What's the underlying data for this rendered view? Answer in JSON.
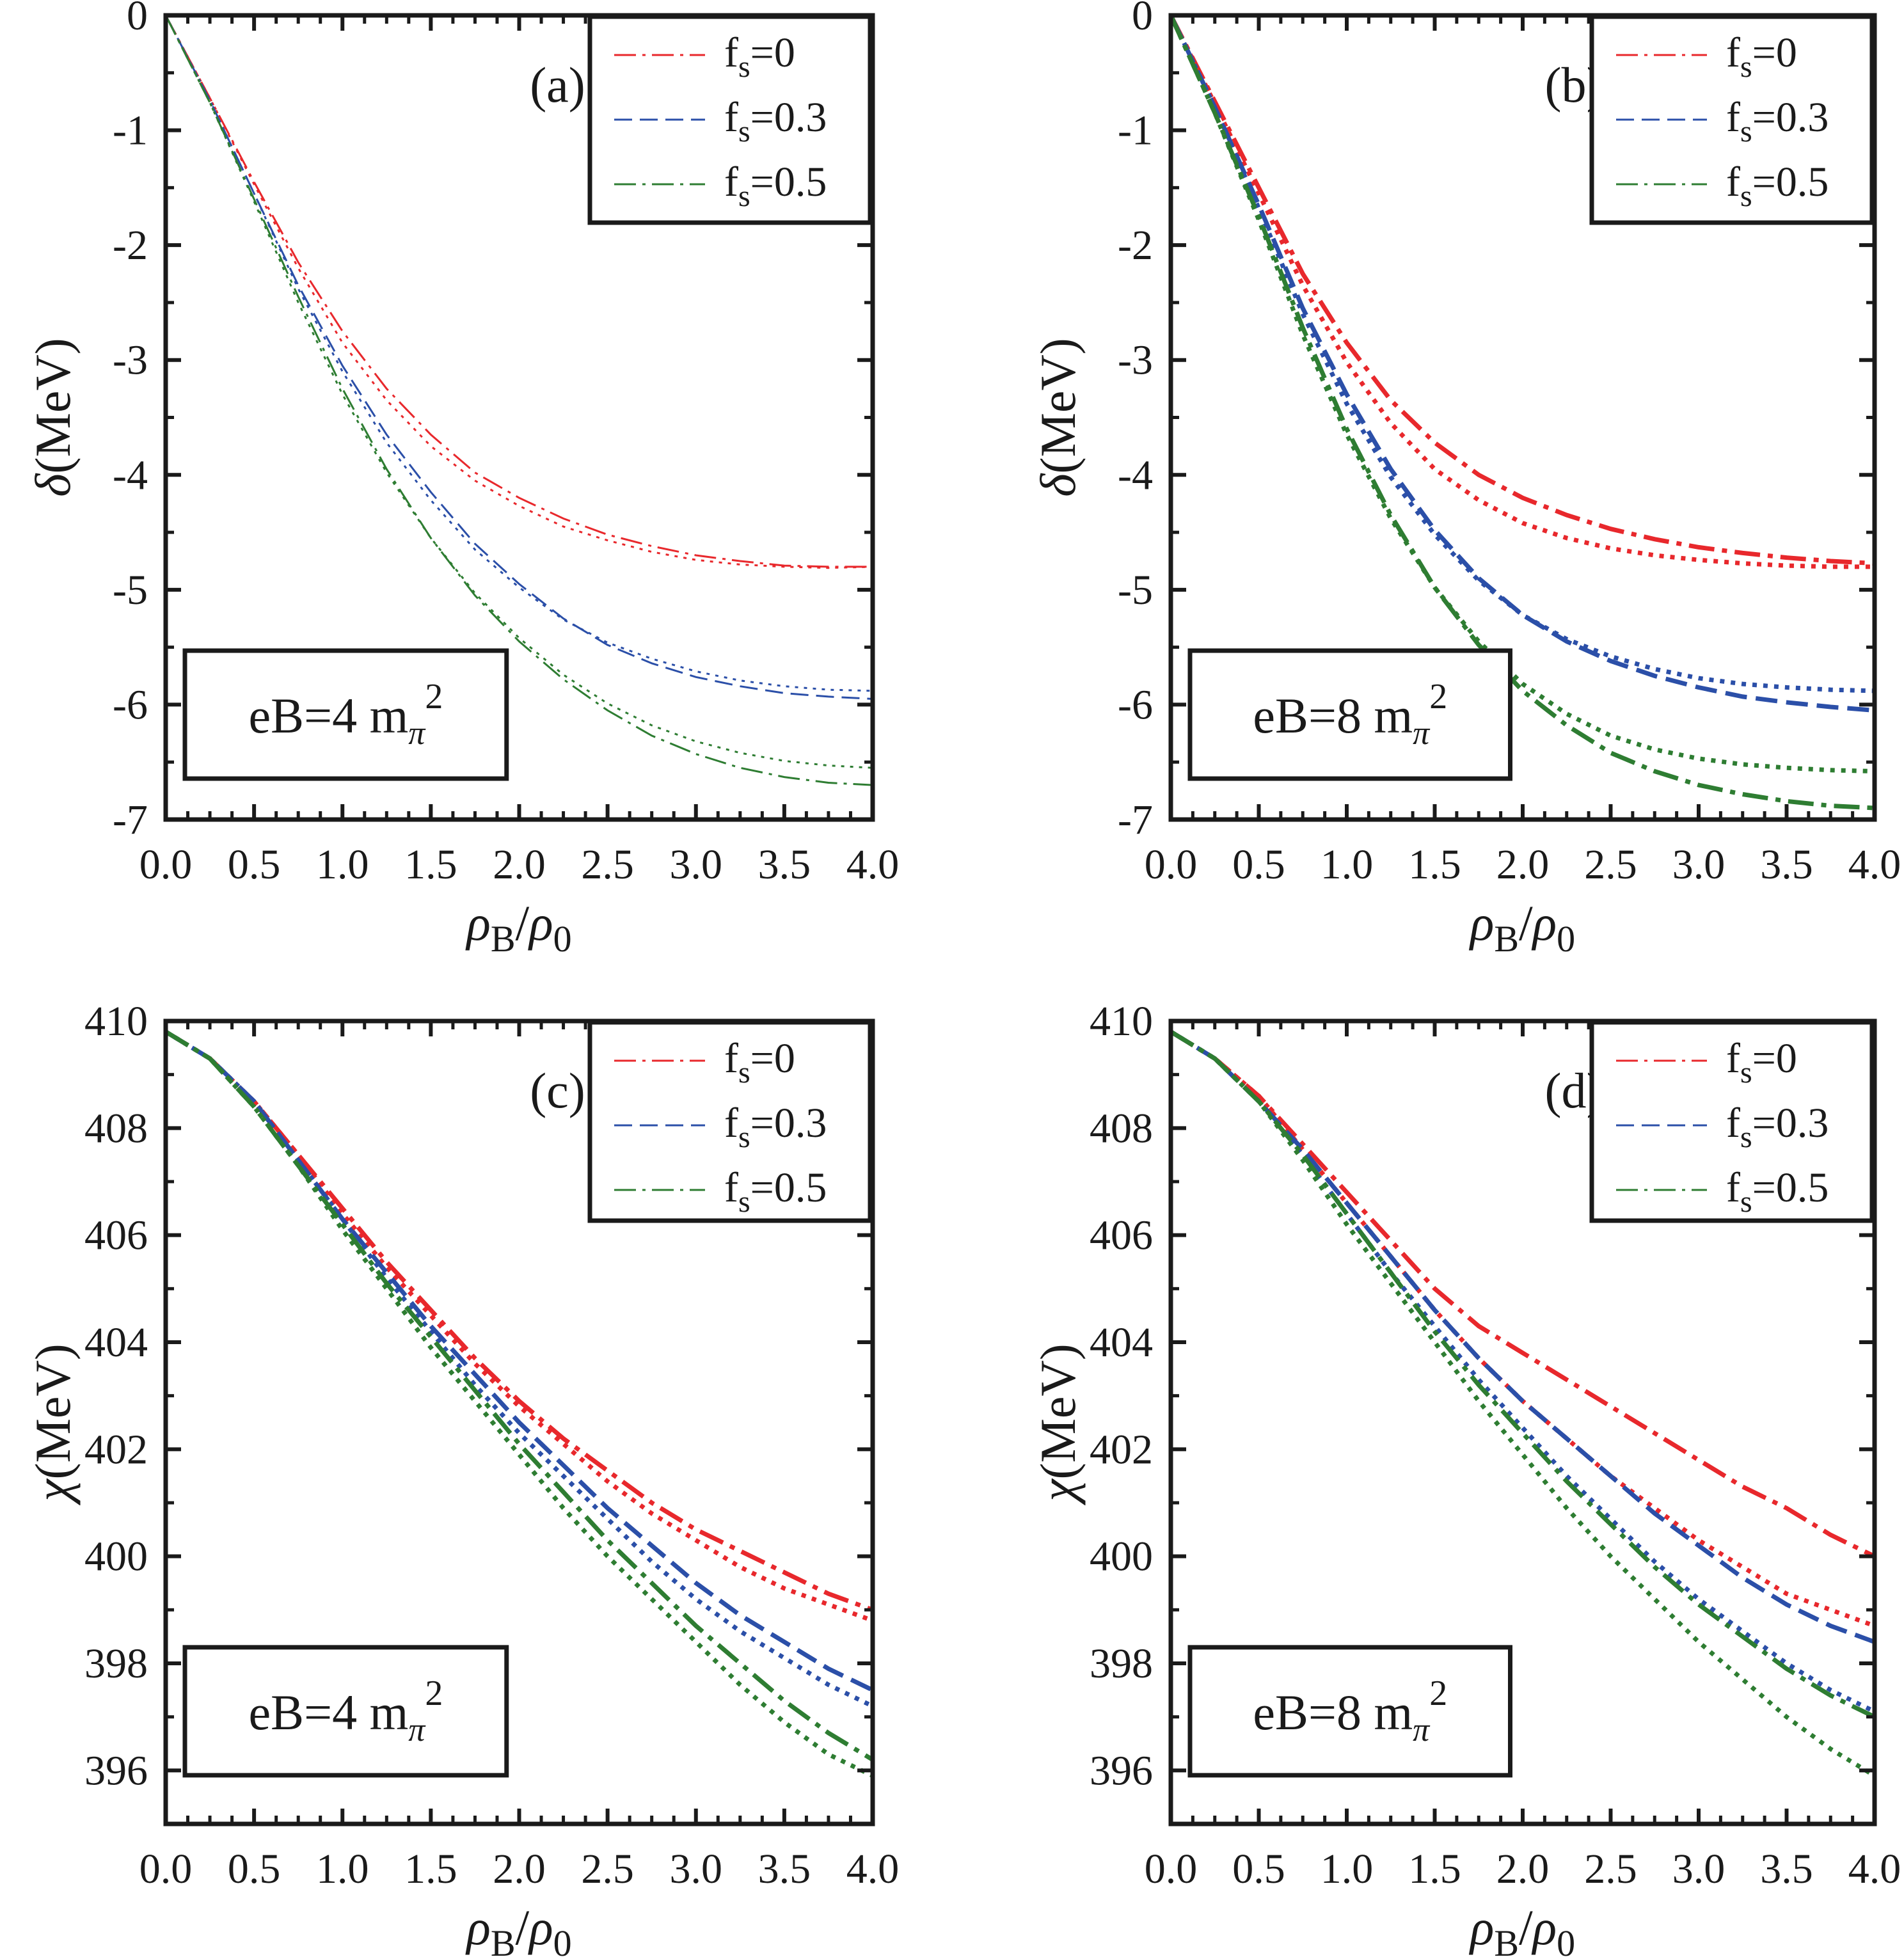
{
  "chart_data": [
    {
      "type": "line",
      "panel_label": "(a)",
      "annotation": "eB=4 m_π^2",
      "annotation_parts": {
        "main": "eB=4 m",
        "sub": "π",
        "sup": "2"
      },
      "xlabel": "ρB/ρ0",
      "ylabel": "δ(MeV)",
      "xlim": [
        0,
        4
      ],
      "ylim": [
        -7,
        0
      ],
      "xticks": [
        "0.0",
        "0.5",
        "1.0",
        "1.5",
        "2.0",
        "2.5",
        "3.0",
        "3.5",
        "4.0"
      ],
      "yticks": [
        "0",
        "-1",
        "-2",
        "-3",
        "-4",
        "-5",
        "-6",
        "-7"
      ],
      "legend_position": "top-right",
      "legend": [
        {
          "label_main": "f",
          "label_sub": "s",
          "label_rest": "=0",
          "color": "#e8282c",
          "style": "dashdot"
        },
        {
          "label_main": "f",
          "label_sub": "s",
          "label_rest": "=0.3",
          "color": "#2b4fa8",
          "style": "dash"
        },
        {
          "label_main": "f",
          "label_sub": "s",
          "label_rest": "=0.5",
          "color": "#2e7d32",
          "style": "dashdot"
        }
      ],
      "x": [
        0,
        0.25,
        0.5,
        0.75,
        1.0,
        1.25,
        1.5,
        1.75,
        2.0,
        2.25,
        2.5,
        2.75,
        3.0,
        3.25,
        3.5,
        3.75,
        4.0
      ],
      "series": [
        {
          "name": "fs=0",
          "color": "#e8282c",
          "style": "dashdot",
          "width": "thin",
          "values": [
            0,
            -0.72,
            -1.45,
            -2.15,
            -2.75,
            -3.25,
            -3.65,
            -3.98,
            -4.2,
            -4.38,
            -4.52,
            -4.62,
            -4.7,
            -4.75,
            -4.79,
            -4.8,
            -4.8
          ]
        },
        {
          "name": "fs=0 (dotted)",
          "color": "#e8282c",
          "style": "dot",
          "width": "thin",
          "values": [
            0,
            -0.72,
            -1.47,
            -2.2,
            -2.85,
            -3.35,
            -3.75,
            -4.05,
            -4.27,
            -4.45,
            -4.57,
            -4.67,
            -4.74,
            -4.78,
            -4.8,
            -4.81,
            -4.8
          ]
        },
        {
          "name": "fs=0.3",
          "color": "#2b4fa8",
          "style": "dash",
          "width": "thin",
          "values": [
            0,
            -0.74,
            -1.55,
            -2.35,
            -3.05,
            -3.65,
            -4.15,
            -4.6,
            -4.95,
            -5.25,
            -5.48,
            -5.64,
            -5.76,
            -5.84,
            -5.9,
            -5.93,
            -5.95
          ]
        },
        {
          "name": "fs=0.3 (dotted)",
          "color": "#2b4fa8",
          "style": "dot",
          "width": "thin",
          "values": [
            0,
            -0.74,
            -1.55,
            -2.38,
            -3.1,
            -3.72,
            -4.22,
            -4.65,
            -4.98,
            -5.26,
            -5.46,
            -5.6,
            -5.71,
            -5.79,
            -5.84,
            -5.87,
            -5.88
          ]
        },
        {
          "name": "fs=0.5",
          "color": "#2e7d32",
          "style": "dashdot",
          "width": "thin",
          "values": [
            0,
            -0.76,
            -1.6,
            -2.45,
            -3.25,
            -3.95,
            -4.55,
            -5.05,
            -5.45,
            -5.78,
            -6.05,
            -6.27,
            -6.43,
            -6.55,
            -6.63,
            -6.68,
            -6.7
          ]
        },
        {
          "name": "fs=0.5 (dotted)",
          "color": "#2e7d32",
          "style": "dot",
          "width": "thin",
          "values": [
            0,
            -0.76,
            -1.62,
            -2.5,
            -3.3,
            -3.98,
            -4.55,
            -5.03,
            -5.42,
            -5.74,
            -5.99,
            -6.18,
            -6.32,
            -6.42,
            -6.49,
            -6.53,
            -6.55
          ]
        }
      ]
    },
    {
      "type": "line",
      "panel_label": "(b)",
      "annotation": "eB=8 m_π^2",
      "annotation_parts": {
        "main": "eB=8 m",
        "sub": "π",
        "sup": "2"
      },
      "xlabel": "ρB/ρ0",
      "ylabel": "δ(MeV)",
      "xlim": [
        0,
        4
      ],
      "ylim": [
        -7,
        0
      ],
      "xticks": [
        "0.0",
        "0.5",
        "1.0",
        "1.5",
        "2.0",
        "2.5",
        "3.0",
        "3.5",
        "4.0"
      ],
      "yticks": [
        "0",
        "-1",
        "-2",
        "-3",
        "-4",
        "-5",
        "-6",
        "-7"
      ],
      "legend_position": "top-right",
      "legend": [
        {
          "label_main": "f",
          "label_sub": "s",
          "label_rest": "=0",
          "color": "#e8282c",
          "style": "dashdot"
        },
        {
          "label_main": "f",
          "label_sub": "s",
          "label_rest": "=0.3",
          "color": "#2b4fa8",
          "style": "dash"
        },
        {
          "label_main": "f",
          "label_sub": "s",
          "label_rest": "=0.5",
          "color": "#2e7d32",
          "style": "dashdot"
        }
      ],
      "x": [
        0,
        0.25,
        0.5,
        0.75,
        1.0,
        1.25,
        1.5,
        1.75,
        2.0,
        2.25,
        2.5,
        2.75,
        3.0,
        3.25,
        3.5,
        3.75,
        4.0
      ],
      "series": [
        {
          "name": "fs=0",
          "color": "#e8282c",
          "style": "dashdot",
          "width": "thick",
          "values": [
            0,
            -0.75,
            -1.5,
            -2.25,
            -2.85,
            -3.35,
            -3.72,
            -4.0,
            -4.2,
            -4.35,
            -4.47,
            -4.56,
            -4.63,
            -4.68,
            -4.72,
            -4.75,
            -4.77
          ]
        },
        {
          "name": "fs=0 (dotted)",
          "color": "#e8282c",
          "style": "dot",
          "width": "thick",
          "values": [
            0,
            -0.77,
            -1.55,
            -2.35,
            -3.02,
            -3.55,
            -3.95,
            -4.22,
            -4.42,
            -4.55,
            -4.64,
            -4.7,
            -4.74,
            -4.77,
            -4.79,
            -4.8,
            -4.8
          ]
        },
        {
          "name": "fs=0.3",
          "color": "#2b4fa8",
          "style": "dash",
          "width": "thick",
          "values": [
            0,
            -0.8,
            -1.65,
            -2.55,
            -3.3,
            -3.95,
            -4.48,
            -4.9,
            -5.22,
            -5.45,
            -5.62,
            -5.75,
            -5.85,
            -5.93,
            -5.98,
            -6.02,
            -6.05
          ]
        },
        {
          "name": "fs=0.3 (dotted)",
          "color": "#2b4fa8",
          "style": "dot",
          "width": "thick",
          "values": [
            0,
            -0.8,
            -1.68,
            -2.6,
            -3.38,
            -4.02,
            -4.52,
            -4.92,
            -5.22,
            -5.43,
            -5.58,
            -5.69,
            -5.77,
            -5.82,
            -5.85,
            -5.87,
            -5.88
          ]
        },
        {
          "name": "fs=0.5",
          "color": "#2e7d32",
          "style": "dashdot",
          "width": "thick",
          "values": [
            0,
            -0.85,
            -1.75,
            -2.72,
            -3.6,
            -4.35,
            -4.98,
            -5.48,
            -5.88,
            -6.18,
            -6.42,
            -6.58,
            -6.7,
            -6.78,
            -6.84,
            -6.88,
            -6.9
          ]
        },
        {
          "name": "fs=0.5 (dotted)",
          "color": "#2e7d32",
          "style": "dot",
          "width": "thick",
          "values": [
            0,
            -0.85,
            -1.78,
            -2.78,
            -3.65,
            -4.38,
            -4.98,
            -5.45,
            -5.82,
            -6.08,
            -6.27,
            -6.39,
            -6.47,
            -6.52,
            -6.55,
            -6.57,
            -6.58
          ]
        }
      ]
    },
    {
      "type": "line",
      "panel_label": "(c)",
      "annotation": "eB=4 m_π^2",
      "annotation_parts": {
        "main": "eB=4 m",
        "sub": "π",
        "sup": "2"
      },
      "xlabel": "ρB/ρ0",
      "ylabel": "χ(MeV)",
      "xlim": [
        0,
        4
      ],
      "ylim": [
        395,
        410
      ],
      "xticks": [
        "0.0",
        "0.5",
        "1.0",
        "1.5",
        "2.0",
        "2.5",
        "3.0",
        "3.5",
        "4.0"
      ],
      "yticks": [
        "410",
        "408",
        "406",
        "404",
        "402",
        "400",
        "398",
        "396"
      ],
      "legend_position": "top-right",
      "legend": [
        {
          "label_main": "f",
          "label_sub": "s",
          "label_rest": "=0",
          "color": "#e8282c",
          "style": "dashdot"
        },
        {
          "label_main": "f",
          "label_sub": "s",
          "label_rest": "=0.3",
          "color": "#2b4fa8",
          "style": "dash"
        },
        {
          "label_main": "f",
          "label_sub": "s",
          "label_rest": "=0.5",
          "color": "#2e7d32",
          "style": "dashdot"
        }
      ],
      "x": [
        0,
        0.25,
        0.5,
        0.75,
        1.0,
        1.25,
        1.5,
        1.75,
        2.0,
        2.25,
        2.5,
        2.75,
        3.0,
        3.25,
        3.5,
        3.75,
        4.0
      ],
      "series": [
        {
          "name": "fs=0",
          "color": "#e8282c",
          "style": "dashdot",
          "width": "thick",
          "values": [
            409.8,
            409.3,
            408.5,
            407.5,
            406.5,
            405.5,
            404.6,
            403.7,
            402.9,
            402.2,
            401.6,
            401.0,
            400.5,
            400.1,
            399.7,
            399.3,
            399.0
          ]
        },
        {
          "name": "fs=0 (dotted)",
          "color": "#e8282c",
          "style": "dot",
          "width": "thick",
          "values": [
            409.8,
            409.3,
            408.5,
            407.5,
            406.4,
            405.4,
            404.5,
            403.6,
            402.8,
            402.1,
            401.4,
            400.8,
            400.3,
            399.8,
            399.4,
            399.1,
            398.8
          ]
        },
        {
          "name": "fs=0.3",
          "color": "#2b4fa8",
          "style": "dash",
          "width": "thick",
          "values": [
            409.8,
            409.3,
            408.5,
            407.4,
            406.3,
            405.3,
            404.3,
            403.4,
            402.5,
            401.7,
            400.9,
            400.2,
            399.5,
            398.9,
            398.4,
            397.9,
            397.5
          ]
        },
        {
          "name": "fs=0.3 (dotted)",
          "color": "#2b4fa8",
          "style": "dot",
          "width": "thick",
          "values": [
            409.8,
            409.3,
            408.5,
            407.4,
            406.3,
            405.2,
            404.2,
            403.2,
            402.3,
            401.5,
            400.7,
            399.9,
            399.2,
            398.6,
            398.1,
            397.6,
            397.2
          ]
        },
        {
          "name": "fs=0.5",
          "color": "#2e7d32",
          "style": "dashdot",
          "width": "thick",
          "values": [
            409.8,
            409.3,
            408.4,
            407.3,
            406.2,
            405.1,
            404.1,
            403.1,
            402.1,
            401.2,
            400.3,
            399.5,
            398.7,
            398.0,
            397.3,
            396.7,
            396.2
          ]
        },
        {
          "name": "fs=0.5 (dotted)",
          "color": "#2e7d32",
          "style": "dot",
          "width": "thick",
          "values": [
            409.8,
            409.3,
            408.4,
            407.3,
            406.1,
            405.0,
            403.9,
            402.9,
            401.9,
            400.9,
            400.0,
            399.2,
            398.4,
            397.6,
            396.9,
            396.3,
            395.9
          ]
        }
      ]
    },
    {
      "type": "line",
      "panel_label": "(d)",
      "annotation": "eB=8 m_π^2",
      "annotation_parts": {
        "main": "eB=8 m",
        "sub": "π",
        "sup": "2"
      },
      "xlabel": "ρB/ρ0",
      "ylabel": "χ(MeV)",
      "xlim": [
        0,
        4
      ],
      "ylim": [
        395,
        410
      ],
      "xticks": [
        "0.0",
        "0.5",
        "1.0",
        "1.5",
        "2.0",
        "2.5",
        "3.0",
        "3.5",
        "4.0"
      ],
      "yticks": [
        "410",
        "408",
        "406",
        "404",
        "402",
        "400",
        "398",
        "396"
      ],
      "legend_position": "top-right",
      "legend": [
        {
          "label_main": "f",
          "label_sub": "s",
          "label_rest": "=0",
          "color": "#e8282c",
          "style": "dashdot"
        },
        {
          "label_main": "f",
          "label_sub": "s",
          "label_rest": "=0.3",
          "color": "#2b4fa8",
          "style": "dash"
        },
        {
          "label_main": "f",
          "label_sub": "s",
          "label_rest": "=0.5",
          "color": "#2e7d32",
          "style": "dashdot"
        }
      ],
      "x": [
        0,
        0.25,
        0.5,
        0.75,
        1.0,
        1.25,
        1.5,
        1.75,
        2.0,
        2.25,
        2.5,
        2.75,
        3.0,
        3.25,
        3.5,
        3.75,
        4.0
      ],
      "series": [
        {
          "name": "fs=0",
          "color": "#e8282c",
          "style": "dashdot",
          "width": "thick",
          "values": [
            409.8,
            409.3,
            408.6,
            407.7,
            406.8,
            405.9,
            405.0,
            404.3,
            403.8,
            403.3,
            402.8,
            402.3,
            401.8,
            401.3,
            400.9,
            400.4,
            400.0
          ]
        },
        {
          "name": "fs=0 (dotted)",
          "color": "#e8282c",
          "style": "dot",
          "width": "thick",
          "values": [
            409.8,
            409.3,
            408.6,
            407.6,
            406.6,
            405.6,
            404.6,
            403.7,
            402.9,
            402.2,
            401.5,
            400.9,
            400.3,
            399.8,
            399.3,
            399.0,
            398.7
          ]
        },
        {
          "name": "fs=0.3",
          "color": "#2b4fa8",
          "style": "dash",
          "width": "thick",
          "values": [
            409.8,
            409.3,
            408.5,
            407.6,
            406.6,
            405.6,
            404.6,
            403.7,
            402.9,
            402.2,
            401.5,
            400.8,
            400.2,
            399.6,
            399.1,
            398.7,
            398.4
          ]
        },
        {
          "name": "fs=0.3 (dotted)",
          "color": "#2b4fa8",
          "style": "dot",
          "width": "thick",
          "values": [
            409.8,
            409.3,
            408.5,
            407.5,
            406.4,
            405.3,
            404.3,
            403.3,
            402.4,
            401.5,
            400.7,
            399.9,
            399.2,
            398.6,
            398.0,
            397.5,
            397.1
          ]
        },
        {
          "name": "fs=0.5",
          "color": "#2e7d32",
          "style": "dashdot",
          "width": "thick",
          "values": [
            409.8,
            409.3,
            408.5,
            407.5,
            406.4,
            405.3,
            404.2,
            403.2,
            402.3,
            401.4,
            400.6,
            399.8,
            399.1,
            398.5,
            397.9,
            397.4,
            397.0
          ]
        },
        {
          "name": "fs=0.5 (dotted)",
          "color": "#2e7d32",
          "style": "dot",
          "width": "thick",
          "values": [
            409.8,
            409.3,
            408.5,
            407.4,
            406.2,
            405.1,
            404.0,
            402.9,
            401.9,
            400.9,
            400.0,
            399.2,
            398.4,
            397.7,
            397.0,
            396.4,
            395.9
          ]
        }
      ]
    }
  ]
}
